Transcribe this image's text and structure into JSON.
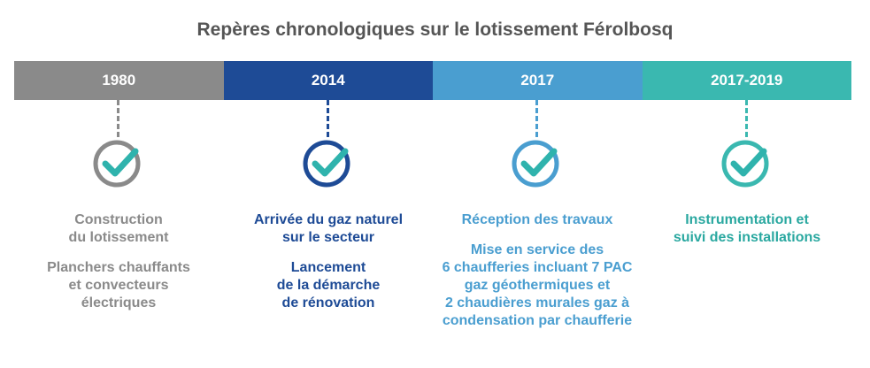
{
  "title": "Repères chronologiques sur le lotissement Férolbosq",
  "colors": {
    "gray": "#8a8a8a",
    "navy": "#1e4b96",
    "blue": "#4a9ed0",
    "teal": "#3ab8b0",
    "check": "#2fb3ad",
    "title": "#555555"
  },
  "milestones": [
    {
      "year": "1980",
      "band_color": "#8a8a8a",
      "circle_color": "#8a8a8a",
      "text_color": "#8a8a8a",
      "icon": "check-circle-icon",
      "paragraphs": [
        "Construction\ndu lotissement",
        "Planchers chauffants\net convecteurs\nélectriques"
      ]
    },
    {
      "year": "2014",
      "band_color": "#1e4b96",
      "circle_color": "#1e4b96",
      "text_color": "#1e4b96",
      "icon": "check-circle-icon",
      "paragraphs": [
        "Arrivée du gaz naturel\nsur le secteur",
        "Lancement\nde la démarche\nde rénovation"
      ]
    },
    {
      "year": "2017",
      "band_color": "#4a9ed0",
      "circle_color": "#4a9ed0",
      "text_color": "#4a9ed0",
      "icon": "check-circle-icon",
      "paragraphs": [
        "Réception des travaux",
        "Mise en service des\n6 chaufferies incluant 7 PAC\ngaz géothermiques et\n2 chaudières murales gaz à\ncondensation par chaufferie"
      ]
    },
    {
      "year": "2017-2019",
      "band_color": "#3ab8b0",
      "circle_color": "#3ab8b0",
      "text_color": "#2aa8a0",
      "icon": "check-circle-icon",
      "paragraphs": [
        "Instrumentation et\nsuivi des installations"
      ]
    }
  ]
}
